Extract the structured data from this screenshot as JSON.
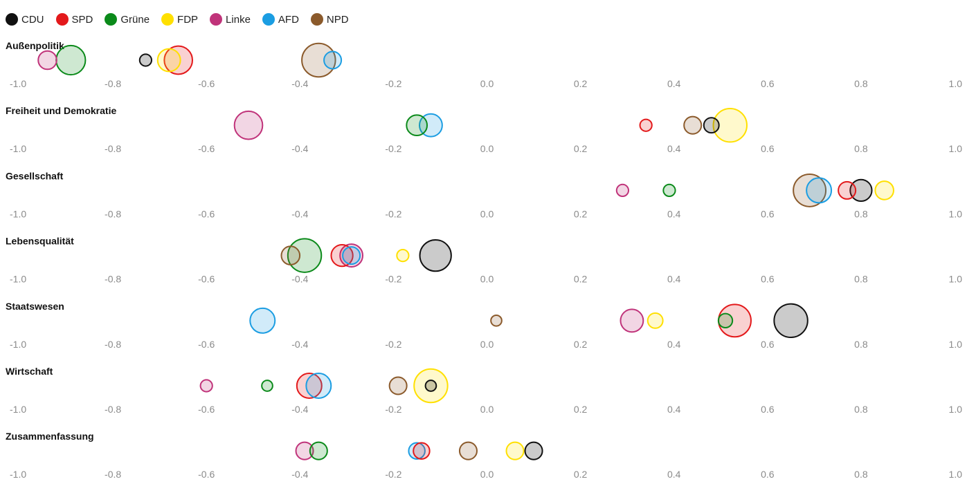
{
  "chart_data": {
    "type": "scatter",
    "x_range": [
      -1.0,
      1.0
    ],
    "x_ticks": [
      "-1.0",
      "-0.8",
      "-0.6",
      "-0.4",
      "-0.2",
      "0.0",
      "0.2",
      "0.4",
      "0.6",
      "0.8",
      "1.0"
    ],
    "parties": [
      {
        "name": "CDU",
        "color": "#111111"
      },
      {
        "name": "SPD",
        "color": "#e3191b"
      },
      {
        "name": "Grüne",
        "color": "#0b8a1a"
      },
      {
        "name": "FDP",
        "color": "#ffe000"
      },
      {
        "name": "Linke",
        "color": "#c0337a"
      },
      {
        "name": "AFD",
        "color": "#1b9de2"
      },
      {
        "name": "NPD",
        "color": "#8b5a2b"
      }
    ],
    "rows": [
      {
        "title": "Außenpolitik",
        "points": [
          {
            "party": "Linke",
            "x": -0.94,
            "size": 1.0
          },
          {
            "party": "Grüne",
            "x": -0.89,
            "size": 2.0
          },
          {
            "party": "CDU",
            "x": -0.73,
            "size": 0.4
          },
          {
            "party": "FDP",
            "x": -0.68,
            "size": 1.4
          },
          {
            "party": "SPD",
            "x": -0.66,
            "size": 1.9
          },
          {
            "party": "NPD",
            "x": -0.36,
            "size": 2.4
          },
          {
            "party": "AFD",
            "x": -0.33,
            "size": 0.9
          }
        ]
      },
      {
        "title": "Freiheit und Demokratie",
        "points": [
          {
            "party": "Linke",
            "x": -0.51,
            "size": 1.9
          },
          {
            "party": "Grüne",
            "x": -0.15,
            "size": 1.2
          },
          {
            "party": "AFD",
            "x": -0.12,
            "size": 1.4
          },
          {
            "party": "SPD",
            "x": 0.34,
            "size": 0.4
          },
          {
            "party": "NPD",
            "x": 0.44,
            "size": 0.9
          },
          {
            "party": "CDU",
            "x": 0.48,
            "size": 0.7
          },
          {
            "party": "FDP",
            "x": 0.52,
            "size": 2.4
          }
        ]
      },
      {
        "title": "Gesellschaft",
        "points": [
          {
            "party": "Linke",
            "x": 0.29,
            "size": 0.4
          },
          {
            "party": "Grüne",
            "x": 0.39,
            "size": 0.4
          },
          {
            "party": "NPD",
            "x": 0.69,
            "size": 2.3
          },
          {
            "party": "AFD",
            "x": 0.71,
            "size": 1.6
          },
          {
            "party": "SPD",
            "x": 0.77,
            "size": 0.9
          },
          {
            "party": "CDU",
            "x": 0.8,
            "size": 1.3
          },
          {
            "party": "FDP",
            "x": 0.85,
            "size": 1.0
          }
        ]
      },
      {
        "title": "Lebensqualität",
        "points": [
          {
            "party": "NPD",
            "x": -0.42,
            "size": 1.0
          },
          {
            "party": "Grüne",
            "x": -0.39,
            "size": 2.4
          },
          {
            "party": "SPD",
            "x": -0.31,
            "size": 1.3
          },
          {
            "party": "Linke",
            "x": -0.29,
            "size": 1.4
          },
          {
            "party": "AFD",
            "x": -0.29,
            "size": 0.9
          },
          {
            "party": "FDP",
            "x": -0.18,
            "size": 0.4
          },
          {
            "party": "CDU",
            "x": -0.11,
            "size": 2.2
          }
        ]
      },
      {
        "title": "Staatswesen",
        "points": [
          {
            "party": "AFD",
            "x": -0.48,
            "size": 1.6
          },
          {
            "party": "NPD",
            "x": 0.02,
            "size": 0.3
          },
          {
            "party": "Linke",
            "x": 0.31,
            "size": 1.4
          },
          {
            "party": "FDP",
            "x": 0.36,
            "size": 0.7
          },
          {
            "party": "Grüne",
            "x": 0.51,
            "size": 0.6
          },
          {
            "party": "SPD",
            "x": 0.53,
            "size": 2.3
          },
          {
            "party": "CDU",
            "x": 0.65,
            "size": 2.4
          }
        ]
      },
      {
        "title": "Wirtschaft",
        "points": [
          {
            "party": "Linke",
            "x": -0.6,
            "size": 0.4
          },
          {
            "party": "Grüne",
            "x": -0.47,
            "size": 0.3
          },
          {
            "party": "SPD",
            "x": -0.38,
            "size": 1.6
          },
          {
            "party": "AFD",
            "x": -0.36,
            "size": 1.6
          },
          {
            "party": "NPD",
            "x": -0.19,
            "size": 0.9
          },
          {
            "party": "FDP",
            "x": -0.12,
            "size": 2.4
          },
          {
            "party": "CDU",
            "x": -0.12,
            "size": 0.3
          }
        ]
      },
      {
        "title": "Zusammenfassung",
        "points": [
          {
            "party": "Linke",
            "x": -0.39,
            "size": 0.9
          },
          {
            "party": "Grüne",
            "x": -0.36,
            "size": 0.9
          },
          {
            "party": "AFD",
            "x": -0.15,
            "size": 0.8
          },
          {
            "party": "SPD",
            "x": -0.14,
            "size": 0.8
          },
          {
            "party": "NPD",
            "x": -0.04,
            "size": 0.9
          },
          {
            "party": "FDP",
            "x": 0.06,
            "size": 0.9
          },
          {
            "party": "CDU",
            "x": 0.1,
            "size": 0.9
          }
        ]
      }
    ]
  }
}
